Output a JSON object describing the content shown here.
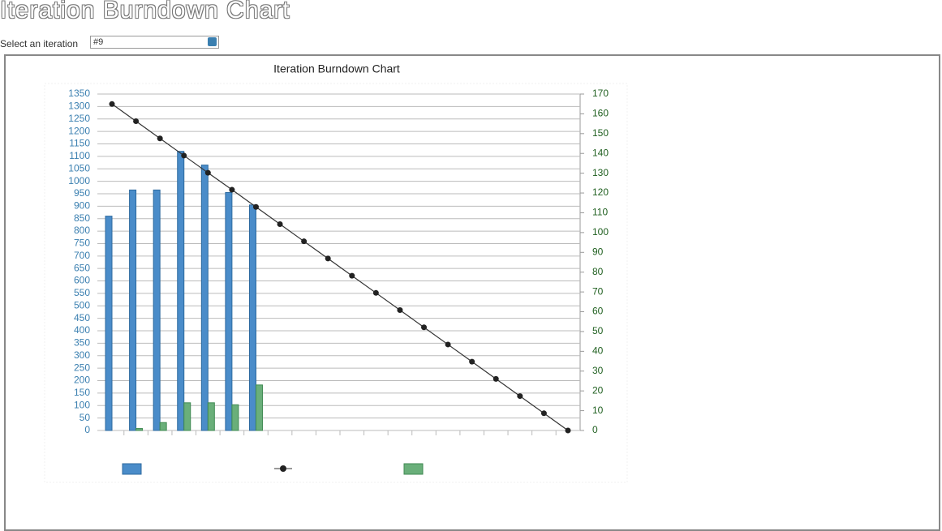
{
  "header": {
    "title": "Iteration Burndown Chart",
    "select_label": "Select an iteration",
    "select_value": "#9"
  },
  "chart_data": {
    "type": "bar",
    "title": "Iteration Burndown Chart",
    "categories": [
      null,
      null,
      null,
      null,
      null,
      null,
      null,
      null,
      null,
      null,
      null,
      null,
      null,
      null,
      null,
      null,
      null,
      null,
      null,
      null
    ],
    "series": [
      {
        "type": "bar",
        "color": "#4a8cc9",
        "values": [
          860,
          965,
          965,
          1120,
          1065,
          955,
          905,
          null,
          null,
          null,
          null,
          null,
          null,
          null,
          null,
          null,
          null,
          null,
          null,
          null
        ]
      },
      {
        "type": "line",
        "color": "#333333",
        "values": [
          1310,
          1241,
          1172,
          1103,
          1034,
          966,
          897,
          828,
          759,
          690,
          621,
          552,
          483,
          414,
          345,
          276,
          207,
          138,
          69,
          0
        ]
      },
      {
        "type": "bar",
        "color": "#6aaf7a",
        "axis": "y2",
        "values": [
          null,
          1,
          4,
          14,
          14,
          13,
          23,
          null,
          null,
          null,
          null,
          null,
          null,
          null,
          null,
          null,
          null,
          null,
          null,
          null
        ]
      }
    ],
    "ylim": [
      0,
      1350
    ],
    "yticks": [
      0,
      50,
      100,
      150,
      200,
      250,
      300,
      350,
      400,
      450,
      500,
      550,
      600,
      650,
      700,
      750,
      800,
      850,
      900,
      950,
      1000,
      1050,
      1100,
      1150,
      1200,
      1250,
      1300,
      1350
    ],
    "y2lim": [
      0,
      170
    ],
    "y2ticks": [
      0,
      10,
      20,
      30,
      40,
      50,
      60,
      70,
      80,
      90,
      100,
      110,
      120,
      130,
      140,
      150,
      160,
      170
    ],
    "grid": true
  }
}
